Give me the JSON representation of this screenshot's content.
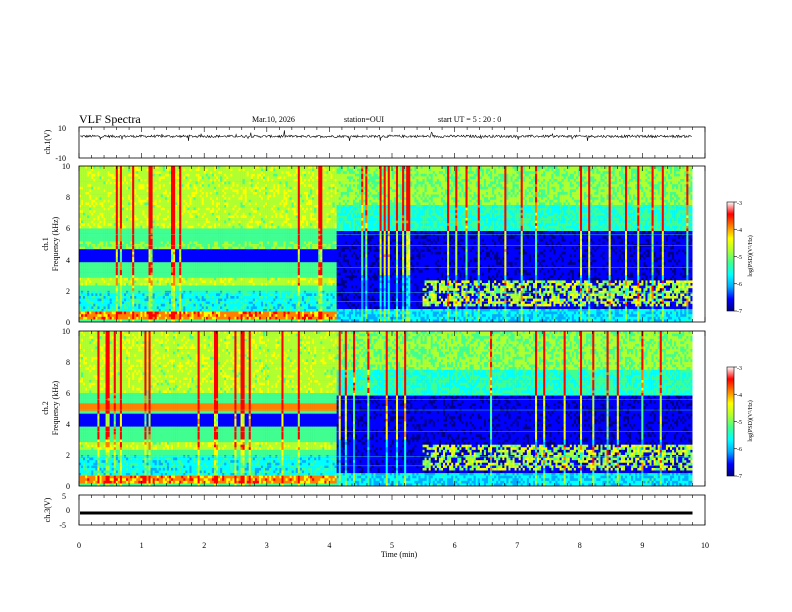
{
  "header": {
    "title": "VLF Spectra",
    "date": "Mar.10, 2026",
    "station": "station=OUI",
    "start": "start UT =  5 : 20 : 0"
  },
  "colors": {
    "scale": [
      "#000080",
      "#0000ff",
      "#00aaff",
      "#00ffff",
      "#40ff90",
      "#b0ff30",
      "#ffff00",
      "#ff8000",
      "#ff0000",
      "#ffffff"
    ]
  },
  "chart_data": [
    {
      "id": "ch1-waveform",
      "type": "line",
      "ylabel": "ch.1(V)",
      "ylim": [
        -10,
        10
      ],
      "yticks": [
        "10",
        "-10"
      ],
      "xlim": [
        0,
        10
      ],
      "baseline": 4
    },
    {
      "id": "ch1-spectrogram",
      "type": "heatmap",
      "ylabel_top": "ch.1",
      "ylabel": "Frequency  (kHz)",
      "ylim": [
        0,
        10
      ],
      "yticks": [
        "0",
        "2",
        "4",
        "6",
        "8",
        "10"
      ],
      "xlim": [
        0,
        10
      ],
      "colorbar": {
        "label": "log(PSD)(V²/Hz)",
        "ticks": [
          "-3",
          "-4",
          "-5",
          "-6",
          "-7"
        ],
        "range": [
          -7,
          -3
        ]
      },
      "transition_min": 4.1
    },
    {
      "id": "ch2-spectrogram",
      "type": "heatmap",
      "ylabel_top": "ch.2",
      "ylabel": "Frequency  (kHz)",
      "ylim": [
        0,
        10
      ],
      "yticks": [
        "0",
        "2",
        "4",
        "6",
        "8",
        "10"
      ],
      "xlim": [
        0,
        10
      ],
      "colorbar": {
        "label": "log(PSD)(V²/Hz)",
        "ticks": [
          "-3",
          "-4",
          "-5",
          "-6",
          "-7"
        ],
        "range": [
          -7,
          -3
        ]
      },
      "transition_min": 4.1
    },
    {
      "id": "ch3-waveform",
      "type": "line",
      "ylabel": "ch.3(V)",
      "ylim": [
        -5,
        5
      ],
      "yticks": [
        "5",
        "0",
        "-5"
      ],
      "xlim": [
        0,
        10
      ],
      "baseline": -1,
      "xlabel": "Time  (min)",
      "xticks": [
        "0",
        "1",
        "2",
        "3",
        "4",
        "5",
        "6",
        "7",
        "8",
        "9",
        "10"
      ]
    }
  ]
}
